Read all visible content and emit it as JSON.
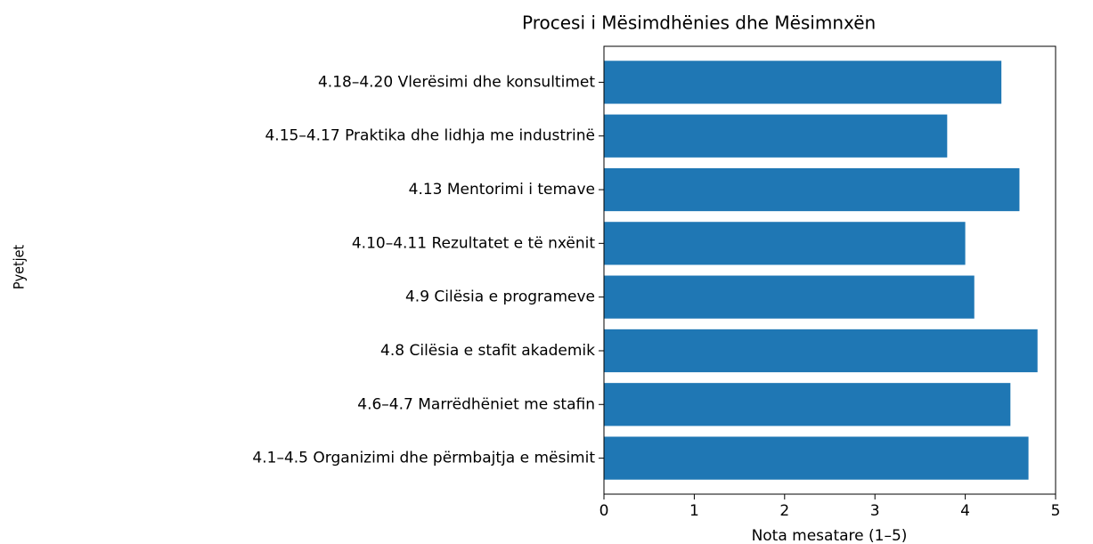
{
  "chart_data": {
    "type": "barh",
    "title": "Procesi i Mësimdhënies dhe Mësimnxën",
    "categories": [
      "4.1–4.5 Organizimi dhe përmbajtja e mësimit",
      "4.6–4.7 Marrëdhëniet me stafin",
      "4.8 Cilësia e stafit akademik",
      "4.9 Cilësia e programeve",
      "4.10–4.11 Rezultatet e të nxënit",
      "4.13 Mentorimi i temave",
      "4.15–4.17 Praktika dhe lidhja me industrinë",
      "4.18–4.20 Vlerësimi dhe konsultimet"
    ],
    "values": [
      4.7,
      4.5,
      4.8,
      4.1,
      4.0,
      4.6,
      3.8,
      4.4
    ],
    "color": "#1f77b4",
    "xlim": [
      0,
      5
    ],
    "xticks": [
      0,
      1,
      2,
      3,
      4,
      5
    ],
    "xlabel": "Nota mesatare (1–5)",
    "ylabel": "Pyetjet",
    "grid": false
  }
}
